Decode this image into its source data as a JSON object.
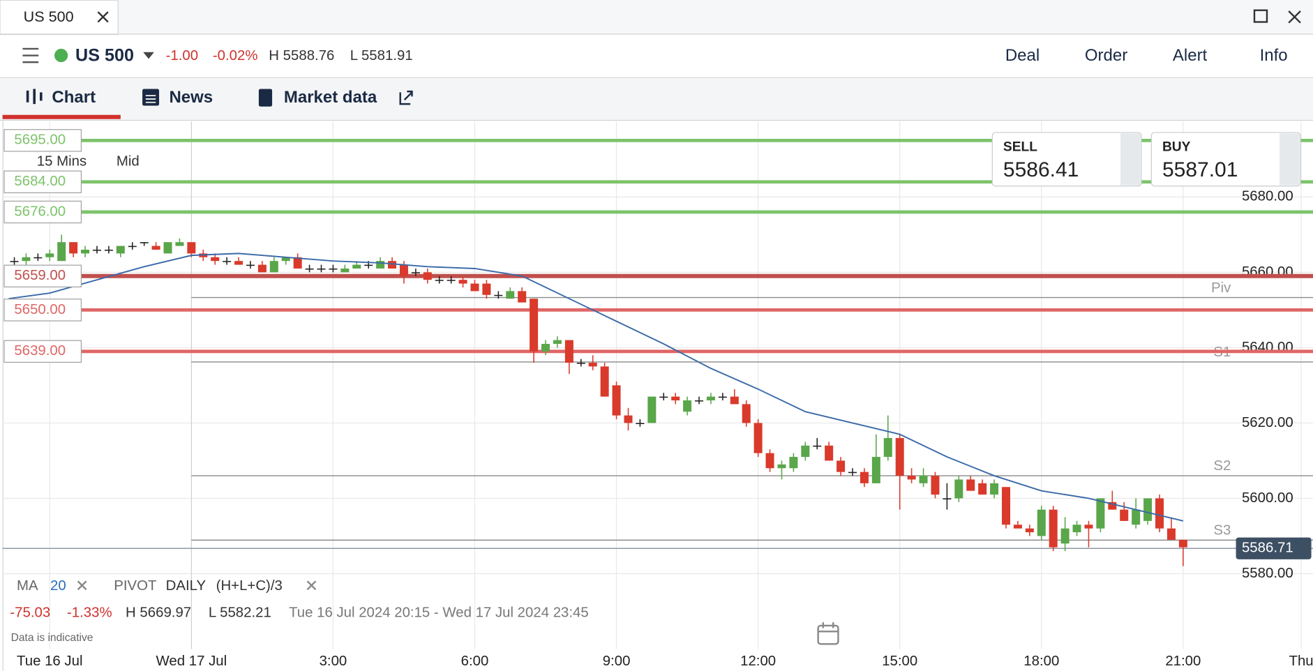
{
  "window": {
    "tab": "US 500"
  },
  "header": {
    "market": "US 500",
    "change": "-1.00",
    "change_pct": "-0.02%",
    "high": "H 5588.76",
    "low": "L 5581.91",
    "buttons": [
      "Deal",
      "Order",
      "Alert",
      "Info"
    ]
  },
  "tabs": [
    "Chart",
    "News",
    "Market data"
  ],
  "chart_settings": {
    "interval": "15 Mins",
    "price_type": "Mid"
  },
  "quote": {
    "sell_label": "SELL",
    "sell": "5586.41",
    "buy_label": "BUY",
    "buy": "5587.01"
  },
  "chart_data": {
    "type": "candlestick",
    "up_color": "#5aa64a",
    "down_color": "#d93a2b",
    "flat_color": "#222222",
    "xlim": [
      -4,
      23.75
    ],
    "ylim": [
      5560,
      5700
    ],
    "grid": true,
    "yticks": [
      {
        "value": 5580,
        "label": "5580.00"
      },
      {
        "value": 5600,
        "label": "5600.00"
      },
      {
        "value": 5620,
        "label": "5620.00"
      },
      {
        "value": 5640,
        "label": "5640.00"
      },
      {
        "value": 5660,
        "label": "5660.00"
      },
      {
        "value": 5680,
        "label": "5680.00"
      }
    ],
    "xticks": [
      {
        "value": -3,
        "label": "Tue 16 Jul"
      },
      {
        "value": 0,
        "label": "Wed 17 Jul"
      },
      {
        "value": 3,
        "label": "3:00"
      },
      {
        "value": 6,
        "label": "6:00"
      },
      {
        "value": 9,
        "label": "9:00"
      },
      {
        "value": 12,
        "label": "12:00"
      },
      {
        "value": 15,
        "label": "15:00"
      },
      {
        "value": 18,
        "label": "18:00"
      },
      {
        "value": 21,
        "label": "21:00"
      },
      {
        "value": 23.5,
        "label": "Thu"
      }
    ],
    "levels": [
      {
        "value": 5695,
        "label": "5695.00",
        "color": "#7dc36b"
      },
      {
        "value": 5684,
        "label": "5684.00",
        "color": "#7dc36b"
      },
      {
        "value": 5676,
        "label": "5676.00",
        "color": "#7dc36b"
      },
      {
        "value": 5659,
        "label": "5659.00",
        "color": "#c0504d"
      },
      {
        "value": 5650,
        "label": "5650.00",
        "color": "#e06666"
      },
      {
        "value": 5639,
        "label": "5639.00",
        "color": "#e06666"
      }
    ],
    "pivots": [
      {
        "value": 5653.3,
        "label": "Piv"
      },
      {
        "value": 5636.2,
        "label": "S1"
      },
      {
        "value": 5606,
        "label": "S2"
      },
      {
        "value": 5588.9,
        "label": "S3"
      }
    ],
    "current_price": {
      "value": 5586.71,
      "label": "5586.71"
    },
    "moving_average": {
      "color": "#3a6aa8",
      "x": [
        -3.87,
        -3,
        -2,
        -1,
        0,
        1,
        2,
        3,
        4,
        5,
        6,
        7,
        8,
        9,
        10,
        11,
        12,
        13,
        14,
        15,
        16,
        17,
        18,
        19,
        20,
        21
      ],
      "values": [
        5653,
        5654.5,
        5658,
        5661.5,
        5664.5,
        5665,
        5664,
        5663,
        5662.5,
        5661.5,
        5661,
        5659,
        5653,
        5647,
        5641,
        5634.5,
        5629,
        5623,
        5620,
        5617,
        5611,
        5606,
        5602,
        5600,
        5597,
        5594
      ]
    },
    "candles": [
      {
        "x": -3.75,
        "open": 5663,
        "high": 5664,
        "low": 5662,
        "close": 5663
      },
      {
        "x": -3.5,
        "open": 5663,
        "high": 5665,
        "low": 5662,
        "close": 5664
      },
      {
        "x": -3.25,
        "open": 5664,
        "high": 5665,
        "low": 5663,
        "close": 5664
      },
      {
        "x": -3,
        "open": 5664,
        "high": 5666,
        "low": 5663,
        "close": 5665
      },
      {
        "x": -2.75,
        "open": 5663,
        "high": 5670,
        "low": 5663,
        "close": 5668
      },
      {
        "x": -2.5,
        "open": 5668,
        "high": 5668,
        "low": 5664,
        "close": 5665
      },
      {
        "x": -2.25,
        "open": 5665,
        "high": 5667,
        "low": 5664,
        "close": 5666
      },
      {
        "x": -2,
        "open": 5666,
        "high": 5667,
        "low": 5665,
        "close": 5666
      },
      {
        "x": -1.75,
        "open": 5666,
        "high": 5667,
        "low": 5665,
        "close": 5666
      },
      {
        "x": -1.5,
        "open": 5665,
        "high": 5667,
        "low": 5664,
        "close": 5667
      },
      {
        "x": -1.25,
        "open": 5667,
        "high": 5668,
        "low": 5666,
        "close": 5667
      },
      {
        "x": -1,
        "open": 5668,
        "high": 5668,
        "low": 5667,
        "close": 5668
      },
      {
        "x": -0.75,
        "open": 5667,
        "high": 5668,
        "low": 5666,
        "close": 5666
      },
      {
        "x": -0.5,
        "open": 5665,
        "high": 5668,
        "low": 5665,
        "close": 5668
      },
      {
        "x": -0.25,
        "open": 5667,
        "high": 5669,
        "low": 5667,
        "close": 5668
      },
      {
        "x": 0,
        "open": 5668,
        "high": 5668,
        "low": 5664,
        "close": 5665
      },
      {
        "x": 0.25,
        "open": 5665,
        "high": 5666,
        "low": 5663,
        "close": 5664
      },
      {
        "x": 0.5,
        "open": 5664,
        "high": 5665,
        "low": 5662,
        "close": 5663
      },
      {
        "x": 0.75,
        "open": 5663,
        "high": 5664,
        "low": 5662,
        "close": 5663
      },
      {
        "x": 1,
        "open": 5663,
        "high": 5664,
        "low": 5662,
        "close": 5662
      },
      {
        "x": 1.25,
        "open": 5662,
        "high": 5663,
        "low": 5661,
        "close": 5662
      },
      {
        "x": 1.5,
        "open": 5662,
        "high": 5663,
        "low": 5660,
        "close": 5660
      },
      {
        "x": 1.75,
        "open": 5660,
        "high": 5664,
        "low": 5660,
        "close": 5663
      },
      {
        "x": 2,
        "open": 5663,
        "high": 5664,
        "low": 5662,
        "close": 5664
      },
      {
        "x": 2.25,
        "open": 5664,
        "high": 5665,
        "low": 5661,
        "close": 5661
      },
      {
        "x": 2.5,
        "open": 5661,
        "high": 5662,
        "low": 5660,
        "close": 5661
      },
      {
        "x": 2.75,
        "open": 5661,
        "high": 5662,
        "low": 5660,
        "close": 5661
      },
      {
        "x": 3,
        "open": 5661,
        "high": 5662,
        "low": 5660,
        "close": 5661
      },
      {
        "x": 3.25,
        "open": 5660,
        "high": 5662,
        "low": 5660,
        "close": 5661
      },
      {
        "x": 3.5,
        "open": 5661,
        "high": 5663,
        "low": 5661,
        "close": 5662
      },
      {
        "x": 3.75,
        "open": 5662,
        "high": 5663,
        "low": 5661,
        "close": 5662
      },
      {
        "x": 4,
        "open": 5661,
        "high": 5664,
        "low": 5661,
        "close": 5663
      },
      {
        "x": 4.25,
        "open": 5663,
        "high": 5664,
        "low": 5661,
        "close": 5661
      },
      {
        "x": 4.5,
        "open": 5662,
        "high": 5663,
        "low": 5657,
        "close": 5659
      },
      {
        "x": 4.75,
        "open": 5660,
        "high": 5661,
        "low": 5659,
        "close": 5660
      },
      {
        "x": 5,
        "open": 5660,
        "high": 5661,
        "low": 5657,
        "close": 5658
      },
      {
        "x": 5.25,
        "open": 5658,
        "high": 5659,
        "low": 5657,
        "close": 5658
      },
      {
        "x": 5.5,
        "open": 5658,
        "high": 5659,
        "low": 5657,
        "close": 5658
      },
      {
        "x": 5.75,
        "open": 5658,
        "high": 5659,
        "low": 5656,
        "close": 5657
      },
      {
        "x": 6,
        "open": 5657,
        "high": 5658,
        "low": 5655,
        "close": 5655
      },
      {
        "x": 6.25,
        "open": 5657,
        "high": 5658,
        "low": 5653,
        "close": 5654
      },
      {
        "x": 6.5,
        "open": 5654,
        "high": 5655,
        "low": 5653,
        "close": 5654
      },
      {
        "x": 6.75,
        "open": 5653,
        "high": 5656,
        "low": 5653,
        "close": 5655
      },
      {
        "x": 7,
        "open": 5655,
        "high": 5656,
        "low": 5652,
        "close": 5652
      },
      {
        "x": 7.25,
        "open": 5653,
        "high": 5653,
        "low": 5636,
        "close": 5639
      },
      {
        "x": 7.5,
        "open": 5639,
        "high": 5642,
        "low": 5638,
        "close": 5641
      },
      {
        "x": 7.75,
        "open": 5641,
        "high": 5643,
        "low": 5640,
        "close": 5642
      },
      {
        "x": 8,
        "open": 5642,
        "high": 5642,
        "low": 5633,
        "close": 5636
      },
      {
        "x": 8.25,
        "open": 5636,
        "high": 5637,
        "low": 5635,
        "close": 5636
      },
      {
        "x": 8.5,
        "open": 5636,
        "high": 5638,
        "low": 5634,
        "close": 5635
      },
      {
        "x": 8.75,
        "open": 5635,
        "high": 5636,
        "low": 5627,
        "close": 5627
      },
      {
        "x": 9,
        "open": 5630,
        "high": 5631,
        "low": 5621,
        "close": 5622
      },
      {
        "x": 9.25,
        "open": 5622,
        "high": 5624,
        "low": 5618,
        "close": 5620
      },
      {
        "x": 9.5,
        "open": 5620,
        "high": 5621,
        "low": 5619,
        "close": 5620
      },
      {
        "x": 9.75,
        "open": 5620,
        "high": 5627,
        "low": 5620,
        "close": 5627
      },
      {
        "x": 10,
        "open": 5627,
        "high": 5628,
        "low": 5626,
        "close": 5627
      },
      {
        "x": 10.25,
        "open": 5627,
        "high": 5628,
        "low": 5625,
        "close": 5626
      },
      {
        "x": 10.5,
        "open": 5623,
        "high": 5627,
        "low": 5622,
        "close": 5626
      },
      {
        "x": 10.75,
        "open": 5626,
        "high": 5627,
        "low": 5625,
        "close": 5626
      },
      {
        "x": 11,
        "open": 5626,
        "high": 5628,
        "low": 5625,
        "close": 5627
      },
      {
        "x": 11.25,
        "open": 5627,
        "high": 5628,
        "low": 5626,
        "close": 5627
      },
      {
        "x": 11.5,
        "open": 5627,
        "high": 5629,
        "low": 5625,
        "close": 5625
      },
      {
        "x": 11.75,
        "open": 5625,
        "high": 5626,
        "low": 5619,
        "close": 5620
      },
      {
        "x": 12,
        "open": 5620,
        "high": 5621,
        "low": 5611,
        "close": 5612
      },
      {
        "x": 12.25,
        "open": 5612,
        "high": 5613,
        "low": 5607,
        "close": 5608
      },
      {
        "x": 12.5,
        "open": 5608,
        "high": 5610,
        "low": 5605,
        "close": 5609
      },
      {
        "x": 12.75,
        "open": 5608,
        "high": 5612,
        "low": 5607,
        "close": 5611
      },
      {
        "x": 13,
        "open": 5611,
        "high": 5615,
        "low": 5610,
        "close": 5614
      },
      {
        "x": 13.25,
        "open": 5614,
        "high": 5616,
        "low": 5613,
        "close": 5614
      },
      {
        "x": 13.5,
        "open": 5614,
        "high": 5615,
        "low": 5610,
        "close": 5610
      },
      {
        "x": 13.75,
        "open": 5610,
        "high": 5611,
        "low": 5606,
        "close": 5607
      },
      {
        "x": 14,
        "open": 5607,
        "high": 5608,
        "low": 5606,
        "close": 5607
      },
      {
        "x": 14.25,
        "open": 5607,
        "high": 5608,
        "low": 5603,
        "close": 5604
      },
      {
        "x": 14.5,
        "open": 5604,
        "high": 5617,
        "low": 5604,
        "close": 5611
      },
      {
        "x": 14.75,
        "open": 5611,
        "high": 5622,
        "low": 5610,
        "close": 5616
      },
      {
        "x": 15,
        "open": 5616,
        "high": 5617,
        "low": 5597,
        "close": 5606
      },
      {
        "x": 15.25,
        "open": 5606,
        "high": 5608,
        "low": 5604,
        "close": 5605
      },
      {
        "x": 15.5,
        "open": 5604,
        "high": 5608,
        "low": 5603,
        "close": 5606
      },
      {
        "x": 15.75,
        "open": 5606,
        "high": 5607,
        "low": 5600,
        "close": 5601
      },
      {
        "x": 16,
        "open": 5600,
        "high": 5604,
        "low": 5597,
        "close": 5600
      },
      {
        "x": 16.25,
        "open": 5600,
        "high": 5606,
        "low": 5599,
        "close": 5605
      },
      {
        "x": 16.5,
        "open": 5605,
        "high": 5606,
        "low": 5602,
        "close": 5602
      },
      {
        "x": 16.75,
        "open": 5604,
        "high": 5605,
        "low": 5601,
        "close": 5601
      },
      {
        "x": 17,
        "open": 5601,
        "high": 5605,
        "low": 5600,
        "close": 5604
      },
      {
        "x": 17.25,
        "open": 5603,
        "high": 5603,
        "low": 5592,
        "close": 5593
      },
      {
        "x": 17.5,
        "open": 5593,
        "high": 5594,
        "low": 5592,
        "close": 5592
      },
      {
        "x": 17.75,
        "open": 5592,
        "high": 5593,
        "low": 5590,
        "close": 5591
      },
      {
        "x": 18,
        "open": 5590,
        "high": 5598,
        "low": 5589,
        "close": 5597
      },
      {
        "x": 18.25,
        "open": 5597,
        "high": 5598,
        "low": 5586,
        "close": 5587
      },
      {
        "x": 18.5,
        "open": 5588,
        "high": 5595,
        "low": 5586,
        "close": 5592
      },
      {
        "x": 18.75,
        "open": 5591,
        "high": 5594,
        "low": 5590,
        "close": 5593
      },
      {
        "x": 19,
        "open": 5593,
        "high": 5594,
        "low": 5587,
        "close": 5592
      },
      {
        "x": 19.25,
        "open": 5592,
        "high": 5600,
        "low": 5591,
        "close": 5600
      },
      {
        "x": 19.5,
        "open": 5599,
        "high": 5602,
        "low": 5597,
        "close": 5597
      },
      {
        "x": 19.75,
        "open": 5597,
        "high": 5599,
        "low": 5594,
        "close": 5594
      },
      {
        "x": 20,
        "open": 5593,
        "high": 5600,
        "low": 5592,
        "close": 5597
      },
      {
        "x": 20.25,
        "open": 5594,
        "high": 5600,
        "low": 5593,
        "close": 5600
      },
      {
        "x": 20.5,
        "open": 5600,
        "high": 5601,
        "low": 5591,
        "close": 5592
      },
      {
        "x": 20.75,
        "open": 5592,
        "high": 5595,
        "low": 5589,
        "close": 5589
      },
      {
        "x": 21,
        "open": 5589,
        "high": 5589,
        "low": 5582,
        "close": 5587
      }
    ]
  },
  "indicators": {
    "ma_label": "MA",
    "ma_period": "20",
    "pivot_label": "PIVOT",
    "pivot_period": "DAILY",
    "pivot_formula": "(H+L+C)/3"
  },
  "summary": {
    "change": "-75.03",
    "change_pct": "-1.33%",
    "high": "H 5669.97",
    "low": "L 5582.21",
    "range": "Tue 16 Jul 2024 20:15 - Wed 17 Jul 2024 23:45"
  },
  "footer": {
    "note": "Data is indicative"
  }
}
